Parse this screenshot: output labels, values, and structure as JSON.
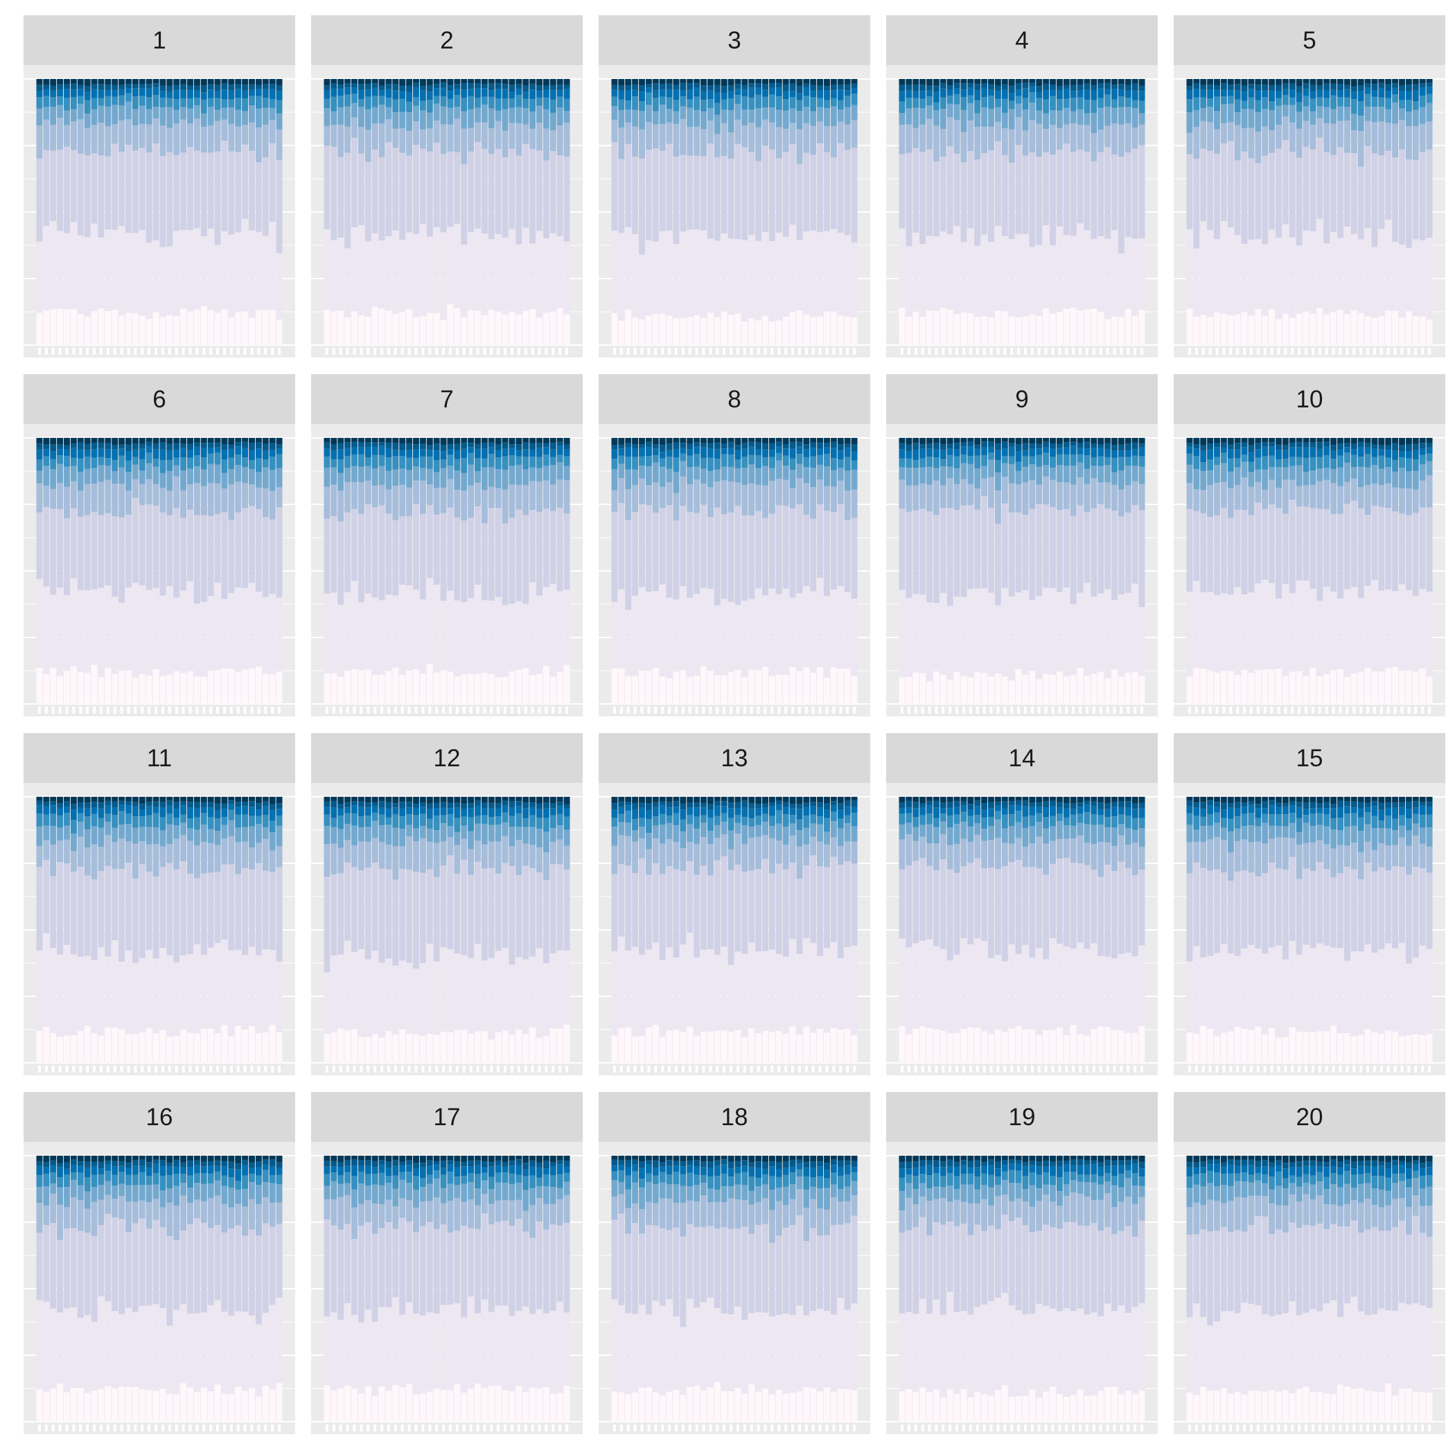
{
  "chart_data": {
    "type": "bar",
    "stacked": true,
    "normalized": true,
    "facet_layout": "5 columns x 4 rows",
    "bars_per_panel": 36,
    "axis_text_shown": false,
    "grid": true,
    "palette": [
      "#fff7fb",
      "#ece7f2",
      "#d0d1e6",
      "#a6bddb",
      "#74a9cf",
      "#3690c0",
      "#0570b0",
      "#045a8d",
      "#023858"
    ],
    "background_color": "#ebebeb",
    "strip_color": "#d9d9d9",
    "layer_shares_bottom_to_top": [
      0.12,
      0.3,
      0.31,
      0.1,
      0.06,
      0.04,
      0.03,
      0.02,
      0.02
    ],
    "panels": [
      {
        "label": "1",
        "shares": [
          0.12,
          0.3,
          0.31,
          0.1,
          0.06,
          0.04,
          0.03,
          0.02,
          0.02
        ]
      },
      {
        "label": "2",
        "shares": [
          0.12,
          0.3,
          0.31,
          0.1,
          0.06,
          0.04,
          0.03,
          0.02,
          0.02
        ]
      },
      {
        "label": "3",
        "shares": [
          0.11,
          0.3,
          0.32,
          0.1,
          0.06,
          0.04,
          0.03,
          0.02,
          0.02
        ]
      },
      {
        "label": "4",
        "shares": [
          0.12,
          0.29,
          0.32,
          0.1,
          0.06,
          0.04,
          0.03,
          0.02,
          0.02
        ]
      },
      {
        "label": "5",
        "shares": [
          0.12,
          0.3,
          0.31,
          0.1,
          0.06,
          0.04,
          0.03,
          0.02,
          0.02
        ]
      },
      {
        "label": "6",
        "shares": [
          0.12,
          0.31,
          0.3,
          0.1,
          0.06,
          0.04,
          0.03,
          0.02,
          0.02
        ]
      },
      {
        "label": "7",
        "shares": [
          0.12,
          0.3,
          0.31,
          0.1,
          0.06,
          0.04,
          0.03,
          0.02,
          0.02
        ]
      },
      {
        "label": "8",
        "shares": [
          0.12,
          0.29,
          0.32,
          0.1,
          0.06,
          0.04,
          0.03,
          0.02,
          0.02
        ]
      },
      {
        "label": "9",
        "shares": [
          0.11,
          0.3,
          0.32,
          0.1,
          0.06,
          0.04,
          0.03,
          0.02,
          0.02
        ]
      },
      {
        "label": "10",
        "shares": [
          0.12,
          0.31,
          0.3,
          0.1,
          0.06,
          0.04,
          0.03,
          0.02,
          0.02
        ]
      },
      {
        "label": "11",
        "shares": [
          0.12,
          0.3,
          0.31,
          0.1,
          0.06,
          0.04,
          0.03,
          0.02,
          0.02
        ]
      },
      {
        "label": "12",
        "shares": [
          0.11,
          0.29,
          0.33,
          0.1,
          0.06,
          0.04,
          0.03,
          0.02,
          0.02
        ]
      },
      {
        "label": "13",
        "shares": [
          0.12,
          0.3,
          0.31,
          0.1,
          0.06,
          0.04,
          0.03,
          0.02,
          0.02
        ]
      },
      {
        "label": "14",
        "shares": [
          0.12,
          0.3,
          0.31,
          0.1,
          0.06,
          0.04,
          0.03,
          0.02,
          0.02
        ]
      },
      {
        "label": "15",
        "shares": [
          0.12,
          0.31,
          0.3,
          0.1,
          0.06,
          0.04,
          0.03,
          0.02,
          0.02
        ]
      },
      {
        "label": "16",
        "shares": [
          0.12,
          0.3,
          0.31,
          0.1,
          0.06,
          0.04,
          0.03,
          0.02,
          0.02
        ]
      },
      {
        "label": "17",
        "shares": [
          0.12,
          0.3,
          0.31,
          0.1,
          0.06,
          0.04,
          0.03,
          0.02,
          0.02
        ]
      },
      {
        "label": "18",
        "shares": [
          0.12,
          0.3,
          0.31,
          0.1,
          0.06,
          0.04,
          0.03,
          0.02,
          0.02
        ]
      },
      {
        "label": "19",
        "shares": [
          0.11,
          0.31,
          0.31,
          0.1,
          0.06,
          0.04,
          0.03,
          0.02,
          0.02
        ]
      },
      {
        "label": "20",
        "shares": [
          0.12,
          0.3,
          0.31,
          0.1,
          0.06,
          0.04,
          0.03,
          0.02,
          0.02
        ]
      }
    ]
  }
}
